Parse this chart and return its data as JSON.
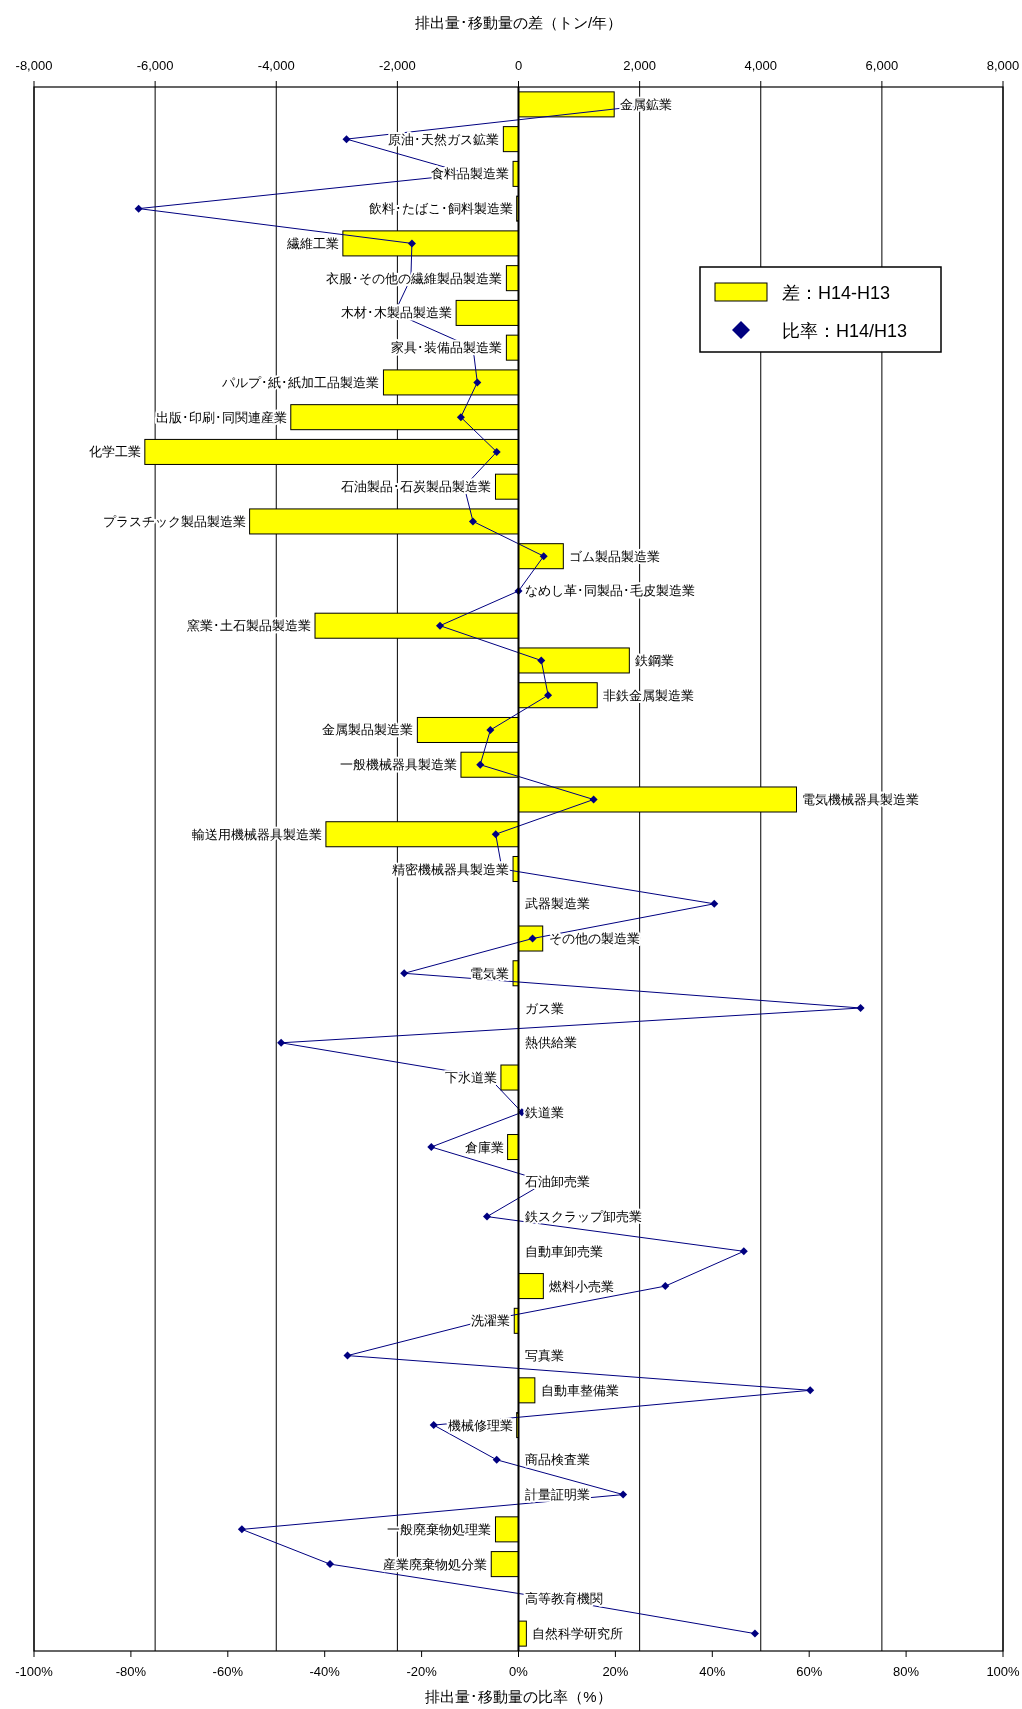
{
  "chart_data": {
    "type": "bar",
    "orientation": "horizontal",
    "xlabel": "排出量･移動量の比率（%）",
    "x2label": "排出量･移動量の差（トン/年）",
    "categories": [
      "金属鉱業",
      "原油･天然ガス鉱業",
      "食料品製造業",
      "飲料･たばこ･飼料製造業",
      "繊維工業",
      "衣服･その他の繊維製品製造業",
      "木材･木製品製造業",
      "家具･装備品製造業",
      "パルプ･紙･紙加工品製造業",
      "出版･印刷･同関連産業",
      "化学工業",
      "石油製品･石炭製品製造業",
      "プラスチック製品製造業",
      "ゴム製品製造業",
      "なめし革･同製品･毛皮製造業",
      "窯業･土石製品製造業",
      "鉄鋼業",
      "非鉄金属製造業",
      "金属製品製造業",
      "一般機械器具製造業",
      "電気機械器具製造業",
      "輸送用機械器具製造業",
      "精密機械器具製造業",
      "武器製造業",
      "その他の製造業",
      "電気業",
      "ガス業",
      "熱供給業",
      "下水道業",
      "鉄道業",
      "倉庫業",
      "石油卸売業",
      "鉄スクラップ卸売業",
      "自動車卸売業",
      "燃料小売業",
      "洗濯業",
      "写真業",
      "自動車整備業",
      "機械修理業",
      "商品検査業",
      "計量証明業",
      "一般廃棄物処理業",
      "産業廃棄物処分業",
      "高等教育機関",
      "自然科学研究所"
    ],
    "series": [
      {
        "name": "差：H14-H13",
        "axis": "x2",
        "color": "#ffff00",
        "values": [
          1580,
          -250,
          -90,
          -30,
          -2900,
          -200,
          -1030,
          -200,
          -2230,
          -3760,
          -6170,
          -380,
          -4440,
          740,
          0,
          -3360,
          1830,
          1300,
          -1670,
          -950,
          4590,
          -3180,
          -90,
          0,
          400,
          -90,
          0,
          0,
          -290,
          0,
          -180,
          0,
          0,
          0,
          410,
          -70,
          0,
          270,
          -30,
          0,
          0,
          -380,
          -450,
          0,
          130
        ]
      },
      {
        "name": "比率：H14/H13",
        "type": "line",
        "color": "#000080",
        "marker": "diamond",
        "values": [
          28.3,
          -35.5,
          -10.3,
          -78.4,
          -22.0,
          -22.2,
          -25.6,
          -9.4,
          -8.5,
          -11.9,
          -4.5,
          -11.2,
          -9.4,
          5.2,
          0,
          -16.2,
          4.7,
          6.1,
          -5.8,
          -7.9,
          15.5,
          -4.7,
          -3.4,
          40.4,
          2.9,
          -23.6,
          70.6,
          -49.0,
          -6.1,
          0.7,
          -18.0,
          5.8,
          -6.5,
          46.5,
          30.3,
          -7.2,
          -35.3,
          60.2,
          -17.5,
          -4.5,
          21.6,
          -57.1,
          -38.9,
          7.2,
          48.8
        ]
      }
    ],
    "xlim": [
      -100,
      100
    ],
    "xticks": [
      {
        "value": -100,
        "label": "-100%"
      },
      {
        "value": -80,
        "label": "-80%"
      },
      {
        "value": -60,
        "label": "-60%"
      },
      {
        "value": -40,
        "label": "-40%"
      },
      {
        "value": -20,
        "label": "-20%"
      },
      {
        "value": 0,
        "label": "0%"
      },
      {
        "value": 20,
        "label": "20%"
      },
      {
        "value": 40,
        "label": "40%"
      },
      {
        "value": 60,
        "label": "60%"
      },
      {
        "value": 80,
        "label": "80%"
      },
      {
        "value": 100,
        "label": "100%"
      }
    ],
    "x2lim": [
      -8000,
      8000
    ],
    "x2ticks": [
      {
        "value": -8000,
        "label": "-8,000"
      },
      {
        "value": -6000,
        "label": "-6,000"
      },
      {
        "value": -4000,
        "label": "-4,000"
      },
      {
        "value": -2000,
        "label": "-2,000"
      },
      0,
      {
        "value": 2000,
        "label": "2,000"
      },
      {
        "value": 4000,
        "label": "4,000"
      },
      {
        "value": 6000,
        "label": "6,000"
      },
      {
        "value": 8000,
        "label": "8,000"
      }
    ],
    "grid": "x2",
    "legend": "top right"
  }
}
